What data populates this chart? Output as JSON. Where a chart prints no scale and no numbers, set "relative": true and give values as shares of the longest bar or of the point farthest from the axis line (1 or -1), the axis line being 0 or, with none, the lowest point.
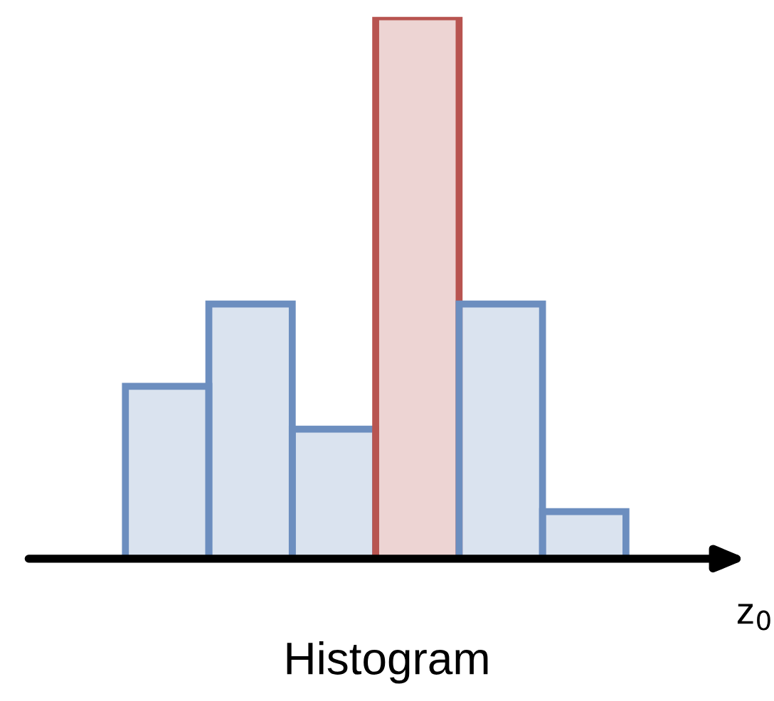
{
  "chart_data": {
    "type": "bar",
    "title": "Histogram",
    "xlabel": "z$_{0}$",
    "categories": [
      null,
      null,
      null,
      null,
      null,
      null
    ],
    "values": [
      0.318,
      0.47,
      0.239,
      1,
      0.47,
      0.087
    ],
    "colors": [
      "#6c8ebf",
      "#6c8ebf",
      "#6c8ebf",
      "#b85450",
      "#6c8ebf",
      "#6c8ebf"
    ],
    "relative": true,
    "grid": false,
    "legend": false
  }
}
